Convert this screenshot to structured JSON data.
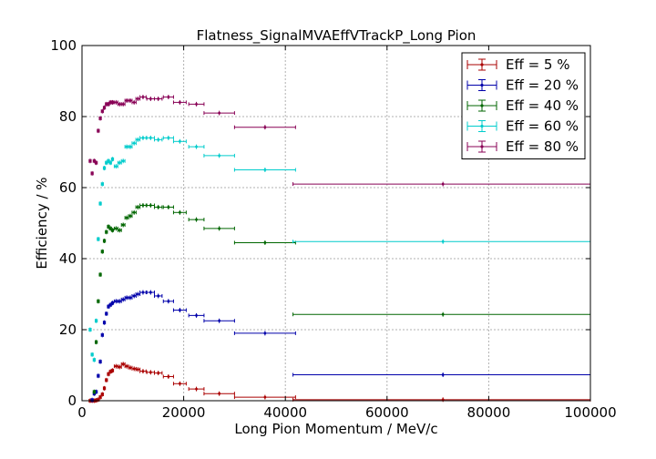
{
  "chart_data": {
    "type": "scatter",
    "title": "Flatness_SignalMVAEffVTrackP_Long Pion",
    "xlabel": "Long Pion Momentum / MeV/c",
    "ylabel": "Efficiency / %",
    "xlim": [
      0,
      100000
    ],
    "ylim": [
      0,
      100
    ],
    "xticks": [
      "0",
      "20000",
      "40000",
      "60000",
      "80000",
      "100000"
    ],
    "yticks": [
      "0",
      "20",
      "40",
      "60",
      "80",
      "100"
    ],
    "grid": true,
    "legend_position": "top-right",
    "series": [
      {
        "name": "Eff = 5 %",
        "color": "#aa0000",
        "points": [
          [
            1600,
            0.0,
            200
          ],
          [
            2000,
            0.0,
            200
          ],
          [
            2400,
            0.0,
            200
          ],
          [
            2800,
            0.1,
            200
          ],
          [
            3200,
            0.3,
            200
          ],
          [
            3600,
            1.0,
            200
          ],
          [
            4000,
            1.8,
            200
          ],
          [
            4400,
            3.5,
            200
          ],
          [
            4800,
            5.8,
            200
          ],
          [
            5200,
            7.5,
            200
          ],
          [
            5600,
            8.2,
            200
          ],
          [
            6000,
            8.5,
            200
          ],
          [
            6700,
            9.7,
            350
          ],
          [
            7400,
            9.5,
            350
          ],
          [
            8100,
            10.3,
            350
          ],
          [
            8800,
            9.7,
            350
          ],
          [
            9500,
            9.3,
            350
          ],
          [
            10250,
            9.0,
            400
          ],
          [
            11000,
            8.8,
            400
          ],
          [
            12000,
            8.3,
            600
          ],
          [
            13500,
            8.0,
            750
          ],
          [
            15000,
            7.8,
            750
          ],
          [
            17000,
            6.8,
            1000
          ],
          [
            19250,
            4.8,
            1250
          ],
          [
            22500,
            3.3,
            1500
          ],
          [
            27000,
            2.0,
            3000
          ],
          [
            36000,
            1.0,
            6000
          ],
          [
            71000,
            0.3,
            29500
          ]
        ]
      },
      {
        "name": "Eff = 20 %",
        "color": "#0000aa",
        "points": [
          [
            2000,
            0.2,
            200
          ],
          [
            2400,
            2.0,
            200
          ],
          [
            2800,
            2.5,
            200
          ],
          [
            3200,
            7.0,
            200
          ],
          [
            3600,
            11.0,
            200
          ],
          [
            4000,
            18.5,
            200
          ],
          [
            4400,
            22.0,
            200
          ],
          [
            4800,
            24.5,
            200
          ],
          [
            5200,
            26.5,
            200
          ],
          [
            5600,
            27.0,
            200
          ],
          [
            6000,
            27.5,
            200
          ],
          [
            6700,
            28.0,
            350
          ],
          [
            7400,
            28.0,
            350
          ],
          [
            8100,
            28.5,
            350
          ],
          [
            8800,
            29.0,
            350
          ],
          [
            9500,
            29.0,
            350
          ],
          [
            10250,
            29.5,
            400
          ],
          [
            11000,
            30.0,
            400
          ],
          [
            12000,
            30.5,
            600
          ],
          [
            13500,
            30.5,
            750
          ],
          [
            15000,
            29.5,
            750
          ],
          [
            17000,
            28.0,
            1000
          ],
          [
            19250,
            25.5,
            1250
          ],
          [
            22500,
            24.0,
            1500
          ],
          [
            27000,
            22.5,
            3000
          ],
          [
            36000,
            19.0,
            6000
          ],
          [
            71000,
            7.3,
            29500
          ]
        ]
      },
      {
        "name": "Eff = 40 %",
        "color": "#006600",
        "points": [
          [
            2400,
            2.5,
            200
          ],
          [
            2800,
            16.5,
            200
          ],
          [
            3200,
            28.0,
            200
          ],
          [
            3600,
            35.5,
            200
          ],
          [
            4000,
            42.0,
            200
          ],
          [
            4400,
            45.0,
            200
          ],
          [
            4800,
            47.5,
            200
          ],
          [
            5200,
            49.0,
            200
          ],
          [
            5600,
            48.5,
            200
          ],
          [
            6000,
            48.0,
            200
          ],
          [
            6700,
            48.5,
            350
          ],
          [
            7400,
            48.0,
            350
          ],
          [
            8100,
            49.5,
            350
          ],
          [
            8800,
            51.5,
            350
          ],
          [
            9500,
            52.0,
            350
          ],
          [
            10250,
            53.0,
            400
          ],
          [
            11000,
            54.5,
            400
          ],
          [
            12000,
            55.0,
            600
          ],
          [
            13500,
            55.0,
            750
          ],
          [
            15000,
            54.5,
            750
          ],
          [
            17000,
            54.5,
            1000
          ],
          [
            19250,
            53.0,
            1250
          ],
          [
            22500,
            51.0,
            1500
          ],
          [
            27000,
            48.5,
            3000
          ],
          [
            36000,
            44.5,
            6000
          ],
          [
            71000,
            24.3,
            29500
          ]
        ]
      },
      {
        "name": "Eff = 60 %",
        "color": "#00cccc",
        "points": [
          [
            1600,
            20.0,
            200
          ],
          [
            2000,
            13.0,
            200
          ],
          [
            2400,
            11.5,
            200
          ],
          [
            2800,
            22.5,
            200
          ],
          [
            3200,
            45.5,
            200
          ],
          [
            3600,
            55.5,
            200
          ],
          [
            4000,
            61.0,
            200
          ],
          [
            4400,
            65.5,
            200
          ],
          [
            4800,
            67.0,
            200
          ],
          [
            5200,
            67.5,
            200
          ],
          [
            5600,
            67.0,
            200
          ],
          [
            6000,
            68.0,
            200
          ],
          [
            6700,
            66.0,
            350
          ],
          [
            7400,
            67.0,
            350
          ],
          [
            8100,
            67.5,
            350
          ],
          [
            8800,
            71.5,
            350
          ],
          [
            9500,
            71.5,
            350
          ],
          [
            10250,
            72.5,
            400
          ],
          [
            11000,
            73.5,
            400
          ],
          [
            12000,
            74.0,
            600
          ],
          [
            13500,
            74.0,
            750
          ],
          [
            15000,
            73.5,
            750
          ],
          [
            17000,
            74.0,
            1000
          ],
          [
            19250,
            73.0,
            1250
          ],
          [
            22500,
            71.5,
            1500
          ],
          [
            27000,
            69.0,
            3000
          ],
          [
            36000,
            65.0,
            6000
          ],
          [
            71000,
            44.8,
            29500
          ]
        ]
      },
      {
        "name": "Eff = 80 %",
        "color": "#880055",
        "points": [
          [
            1600,
            67.5,
            200
          ],
          [
            2000,
            64.0,
            200
          ],
          [
            2400,
            67.5,
            200
          ],
          [
            2800,
            67.0,
            200
          ],
          [
            3200,
            76.0,
            200
          ],
          [
            3600,
            79.5,
            200
          ],
          [
            4000,
            81.5,
            200
          ],
          [
            4400,
            82.5,
            200
          ],
          [
            4800,
            83.5,
            200
          ],
          [
            5200,
            83.5,
            200
          ],
          [
            5600,
            84.0,
            200
          ],
          [
            6000,
            84.0,
            200
          ],
          [
            6700,
            84.0,
            350
          ],
          [
            7400,
            83.5,
            350
          ],
          [
            8100,
            83.5,
            350
          ],
          [
            8800,
            84.5,
            350
          ],
          [
            9500,
            84.5,
            350
          ],
          [
            10250,
            84.0,
            400
          ],
          [
            11000,
            85.0,
            400
          ],
          [
            12000,
            85.5,
            600
          ],
          [
            13500,
            85.0,
            750
          ],
          [
            15000,
            85.0,
            750
          ],
          [
            17000,
            85.5,
            1000
          ],
          [
            19250,
            84.0,
            1250
          ],
          [
            22500,
            83.5,
            1500
          ],
          [
            27000,
            81.0,
            3000
          ],
          [
            36000,
            77.0,
            6000
          ],
          [
            71000,
            61.0,
            29500
          ]
        ]
      }
    ]
  }
}
